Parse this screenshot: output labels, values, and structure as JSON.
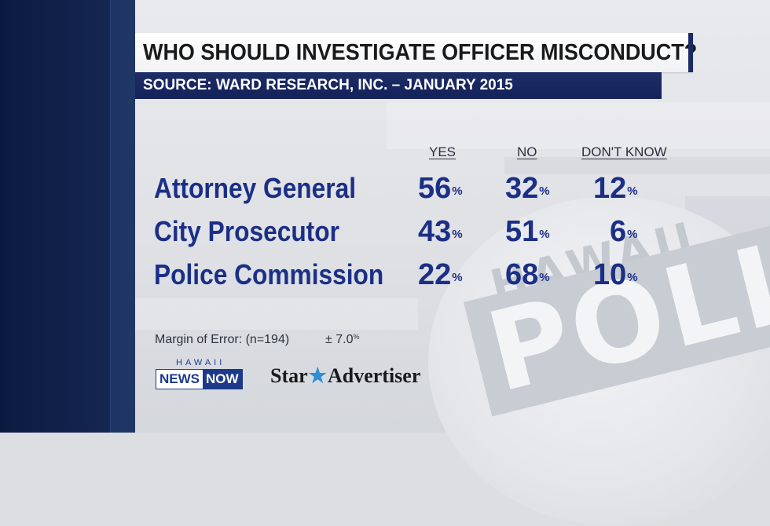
{
  "title": "WHO SHOULD INVESTIGATE OFFICER MISCONDUCT?",
  "source": "SOURCE: WARD RESEARCH, INC. – JANUARY 2015",
  "columns": {
    "yes": "YES",
    "no": "NO",
    "dont_know": "DON'T KNOW"
  },
  "rows": [
    {
      "label": "Attorney General",
      "yes": "56",
      "no": "32",
      "dont_know": "12"
    },
    {
      "label": "City Prosecutor",
      "yes": "43",
      "no": "51",
      "dont_know": "6"
    },
    {
      "label": "Police Commission",
      "yes": "22",
      "no": "68",
      "dont_know": "10"
    }
  ],
  "pct_symbol": "%",
  "margin": {
    "label": "Margin of Error: (n=194)",
    "value": "± 7.0"
  },
  "logos": {
    "hnn_top": "HAWAII",
    "hnn_news": "NEWS",
    "hnn_now": "NOW",
    "sa_left": "Star",
    "sa_star": "★",
    "sa_right": "Advertiser"
  },
  "watermark": {
    "hawaii": "HAWAII",
    "poll": "POLL"
  },
  "colors": {
    "navy": "#14225a",
    "value_blue": "#1b2f86",
    "star_blue": "#2d8fd6"
  }
}
